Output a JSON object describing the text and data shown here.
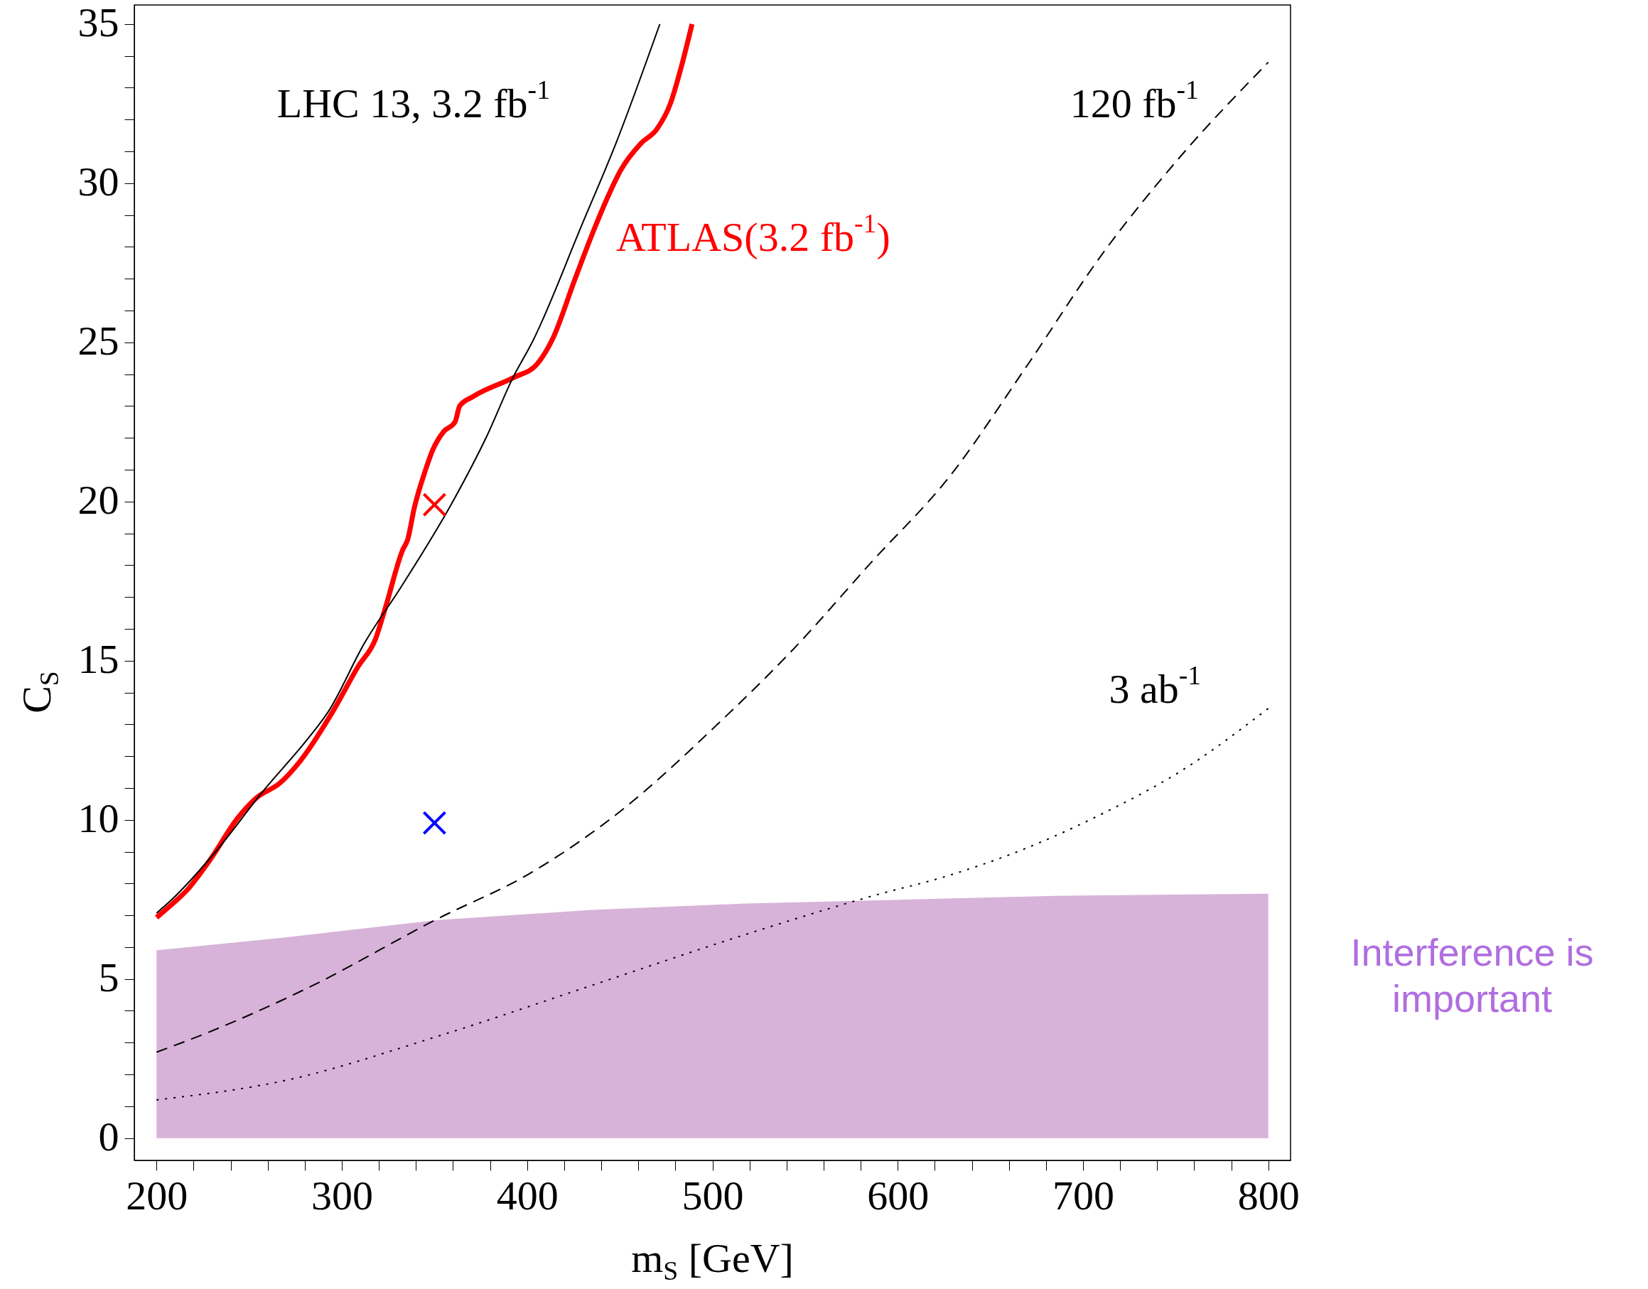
{
  "chart_data": {
    "type": "line",
    "xlabel": "m$_{S}$ [GeV]",
    "ylabel": "C$_{S}$",
    "xlim": [
      188,
      812
    ],
    "ylim": [
      -0.7,
      35.6
    ],
    "xticks": [
      200,
      {
        "value": 220,
        "label": null
      },
      {
        "value": 240,
        "label": null
      },
      {
        "value": 260,
        "label": null
      },
      {
        "value": 280,
        "label": null
      },
      300,
      {
        "value": 320,
        "label": null
      },
      {
        "value": 340,
        "label": null
      },
      {
        "value": 360,
        "label": null
      },
      {
        "value": 380,
        "label": null
      },
      400,
      {
        "value": 420,
        "label": null
      },
      {
        "value": 440,
        "label": null
      },
      {
        "value": 460,
        "label": null
      },
      {
        "value": 480,
        "label": null
      },
      500,
      {
        "value": 520,
        "label": null
      },
      {
        "value": 540,
        "label": null
      },
      {
        "value": 560,
        "label": null
      },
      {
        "value": 580,
        "label": null
      },
      600,
      {
        "value": 620,
        "label": null
      },
      {
        "value": 640,
        "label": null
      },
      {
        "value": 660,
        "label": null
      },
      {
        "value": 680,
        "label": null
      },
      700,
      {
        "value": 720,
        "label": null
      },
      {
        "value": 740,
        "label": null
      },
      {
        "value": 760,
        "label": null
      },
      {
        "value": 780,
        "label": null
      },
      800
    ],
    "yticks": [
      0,
      {
        "value": 1,
        "label": null
      },
      {
        "value": 2,
        "label": null
      },
      {
        "value": 3,
        "label": null
      },
      {
        "value": 4,
        "label": null
      },
      5,
      {
        "value": 6,
        "label": null
      },
      {
        "value": 7,
        "label": null
      },
      {
        "value": 8,
        "label": null
      },
      {
        "value": 9,
        "label": null
      },
      10,
      {
        "value": 11,
        "label": null
      },
      {
        "value": 12,
        "label": null
      },
      {
        "value": 13,
        "label": null
      },
      {
        "value": 14,
        "label": null
      },
      15,
      {
        "value": 16,
        "label": null
      },
      {
        "value": 17,
        "label": null
      },
      {
        "value": 18,
        "label": null
      },
      {
        "value": 19,
        "label": null
      },
      20,
      {
        "value": 21,
        "label": null
      },
      {
        "value": 22,
        "label": null
      },
      {
        "value": 23,
        "label": null
      },
      {
        "value": 24,
        "label": null
      },
      25,
      {
        "value": 26,
        "label": null
      },
      {
        "value": 27,
        "label": null
      },
      {
        "value": 28,
        "label": null
      },
      {
        "value": 29,
        "label": null
      },
      30,
      {
        "value": 31,
        "label": null
      },
      {
        "value": 32,
        "label": null
      },
      {
        "value": 33,
        "label": null
      },
      {
        "value": 34,
        "label": null
      },
      35
    ],
    "grid": false,
    "series": [
      {
        "type": "area",
        "name": "Interference is important",
        "color": "#d8b3d9",
        "x": [
          200,
          268.6,
          351.8,
          435,
          518,
          601,
          685,
          800
        ],
        "values": [
          5.9,
          6.3,
          6.85,
          7.17,
          7.37,
          7.49,
          7.61,
          7.68
        ]
      },
      {
        "name": "ATLAS(3.2 fb$^{-1}$)",
        "color": "#ff0000",
        "line_style": "solid",
        "x": [
          200,
          206.2,
          216.6,
          229.1,
          243.7,
          254.1,
          266.5,
          276.9,
          295.1,
          308.6,
          318.3,
          323.2,
          333,
          335.5,
          339.1,
          345.2,
          348.9,
          355,
          361.1,
          363.6,
          370.9,
          392.9,
          405.1,
          413.7,
          425.9,
          435.8,
          443,
          450.4,
          461.4,
          470,
          477.3,
          483.4,
          489
        ],
        "values": [
          6.93,
          7.24,
          7.8,
          8.76,
          10.05,
          10.7,
          11.15,
          11.8,
          13.4,
          14.8,
          15.7,
          16.6,
          18.5,
          18.8,
          19.8,
          21.0,
          21.6,
          22.2,
          22.5,
          23.0,
          23.3,
          23.9,
          24.3,
          25.1,
          27.0,
          28.5,
          29.5,
          30.4,
          31.25,
          31.7,
          32.5,
          33.7,
          35.0
        ]
      },
      {
        "name": "LHC 13,  3.2 fb$^{-1}$",
        "color": "#000000",
        "line_style": "solid",
        "x": [
          200,
          208.3,
          231.2,
          258.2,
          281,
          292.7,
          312.2,
          331.8,
          359.9,
          378.2,
          392.4,
          402.7,
          429.6,
          447.9,
          471.6
        ],
        "values": [
          7.07,
          7.5,
          8.95,
          10.95,
          12.5,
          13.4,
          15.55,
          17.3,
          20.0,
          22.05,
          23.9,
          25.0,
          28.7,
          31.25,
          35.0
        ]
      },
      {
        "name": "120 fb$^{-1}$",
        "color": "#000000",
        "line_style": "dashed",
        "x": [
          200,
          227,
          281,
          352,
          401,
          451,
          502.7,
          544.3,
          585.9,
          627.5,
          669,
          710.7,
          752,
          800
        ],
        "values": [
          2.7,
          3.3,
          4.7,
          6.9,
          8.3,
          10.3,
          13.0,
          15.4,
          18.1,
          20.75,
          24.2,
          27.8,
          30.8,
          33.8
        ]
      },
      {
        "name": "3 ab$^{-1}$",
        "color": "#000000",
        "line_style": "dotted",
        "x": [
          200,
          268.6,
          351.8,
          435,
          518,
          585.9,
          627.5,
          669,
          710.7,
          752,
          800
        ],
        "values": [
          1.2,
          1.8,
          3.2,
          4.8,
          6.4,
          7.6,
          8.25,
          9.1,
          10.2,
          11.5,
          13.5
        ]
      },
      {
        "type": "scatter",
        "color": "#ff0000",
        "marker": "cross",
        "x": [
          350
        ],
        "values": [
          19.9
        ]
      },
      {
        "type": "scatter",
        "color": "#0000ff",
        "marker": "cross",
        "x": [
          350
        ],
        "values": [
          9.9
        ]
      }
    ]
  }
}
